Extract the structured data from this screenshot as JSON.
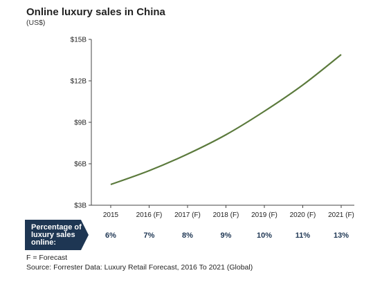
{
  "chart_data": {
    "type": "line",
    "title": "Online luxury sales in China",
    "subtitle": "(US$)",
    "xlabel": "",
    "ylabel": "",
    "x": [
      "2015",
      "2016 (F)",
      "2017 (F)",
      "2018 (F)",
      "2019 (F)",
      "2020 (F)",
      "2021 (F)"
    ],
    "y_ticks": [
      "$3B",
      "$6B",
      "$9B",
      "$12B",
      "$15B"
    ],
    "ylim": [
      3,
      15
    ],
    "grid": false,
    "series": [
      {
        "name": "",
        "color": "#5b7a3c",
        "values": [
          4.5,
          5.5,
          6.7,
          8.1,
          9.8,
          11.7,
          13.9
        ]
      }
    ]
  },
  "percentage_row": {
    "label": "Percentage of luxury sales online:",
    "values": [
      "6%",
      "7%",
      "8%",
      "9%",
      "10%",
      "11%",
      "13%"
    ]
  },
  "footnote": "F = Forecast",
  "source": "Source: Forrester Data: Luxury Retail Forecast, 2016 To 2021 (Global)",
  "colors": {
    "line": "#5b7a3c",
    "label_box": "#1e3653",
    "axis": "#444444"
  }
}
